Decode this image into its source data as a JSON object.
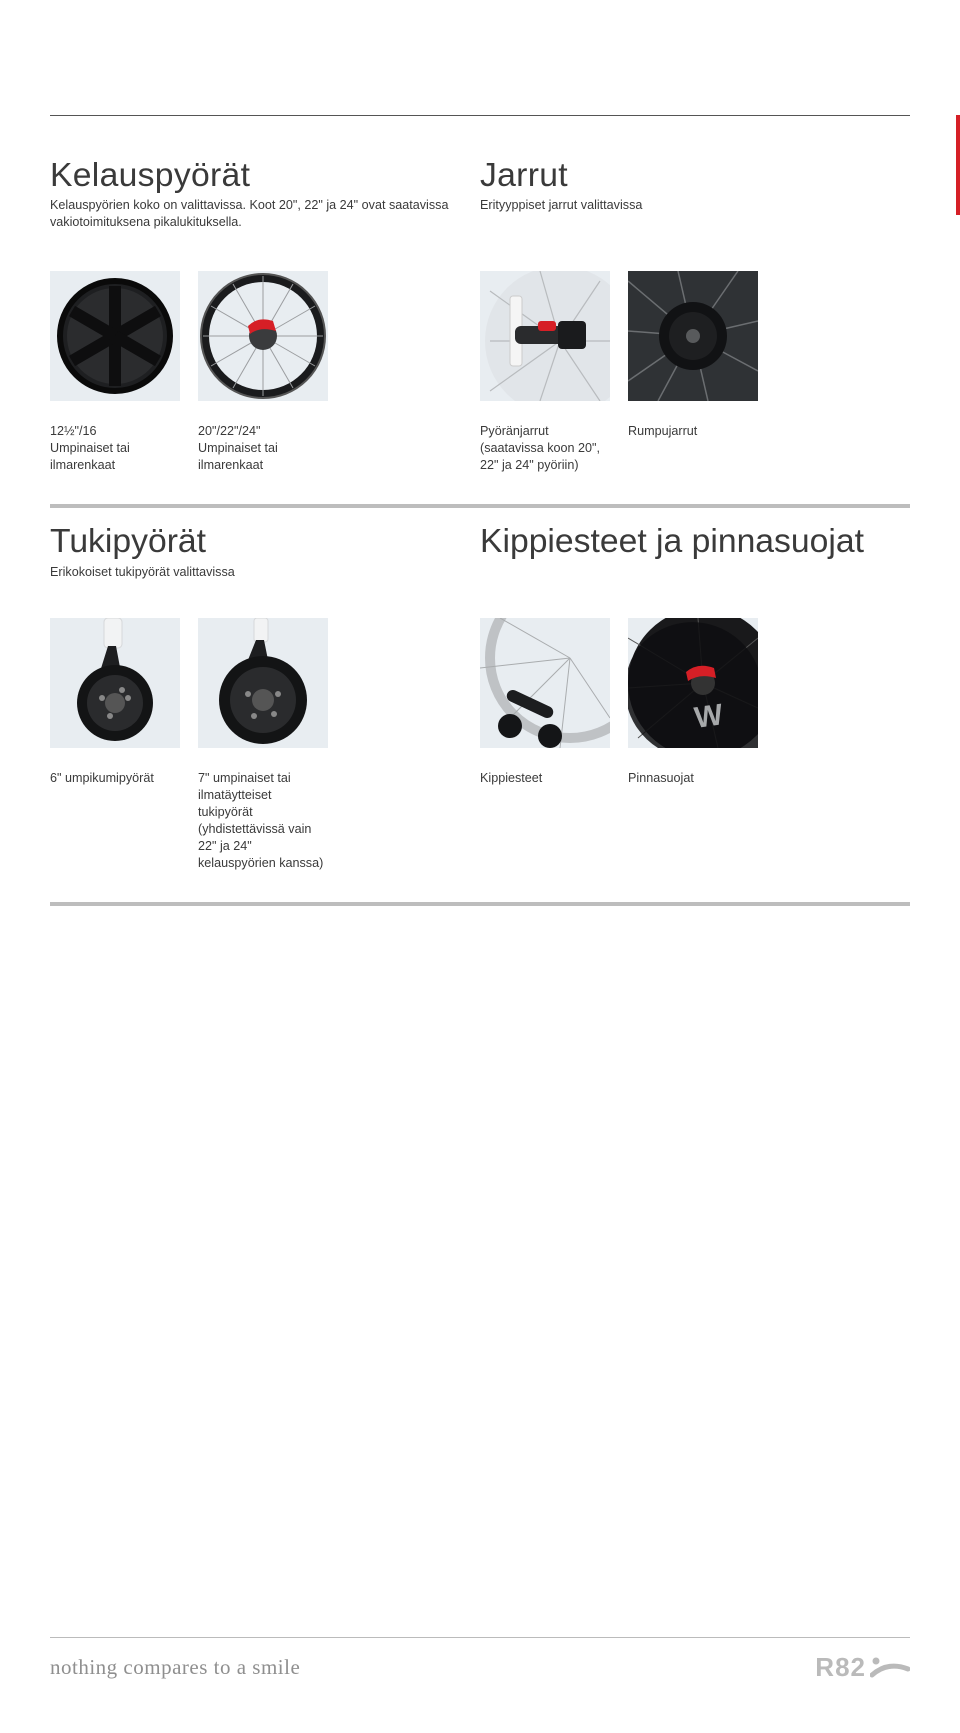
{
  "colors": {
    "red_edge": "#d61f26",
    "text": "#3a3a3a",
    "rule_thin": "#555555",
    "rule_thick": "#bdbdbd",
    "thumb_bg": "#e8edf1",
    "slogan": "#8f8f8f",
    "logo": "#bababa"
  },
  "top": {
    "left": {
      "title": "Kelauspyörät",
      "sub": "Kelauspyörien koko on valittavissa. Koot 20\", 22\" ja 24\" ovat saatavissa vakiotoimituksena pikalukituksella."
    },
    "right": {
      "title": "Jarrut",
      "sub": "Erityyppiset jarrut valittavissa"
    }
  },
  "captions_row1": {
    "left": [
      "12½\"/16\nUmpinaiset tai ilmarenkaat",
      "20\"/22\"/24\"\nUmpinaiset tai ilmarenkaat"
    ],
    "right": [
      "Pyöränjarrut\n(saatavissa koon 20\", 22\" ja 24\" pyöriin)",
      "Rumpujarrut"
    ]
  },
  "mid": {
    "left": {
      "title": "Tukipyörät",
      "sub": "Erikokoiset tukipyörät valittavissa"
    },
    "right": {
      "title": "Kippiesteet ja pinnasuojat",
      "sub": ""
    }
  },
  "captions_row2": {
    "left": [
      "6\" umpikumipyörät",
      "7\" umpinaiset tai ilmatäytteiset tukipyörät (yhdistettävissä vain 22\" ja 24\" kelauspyörien kanssa)"
    ],
    "right": [
      "Kippiesteet",
      "Pinnasuojat"
    ]
  },
  "footer": {
    "slogan": "nothing compares to a smile",
    "logo": "R82"
  },
  "fontsizes": {
    "title": 33.7,
    "body": 12.6,
    "slogan": 21,
    "logo": 26
  }
}
